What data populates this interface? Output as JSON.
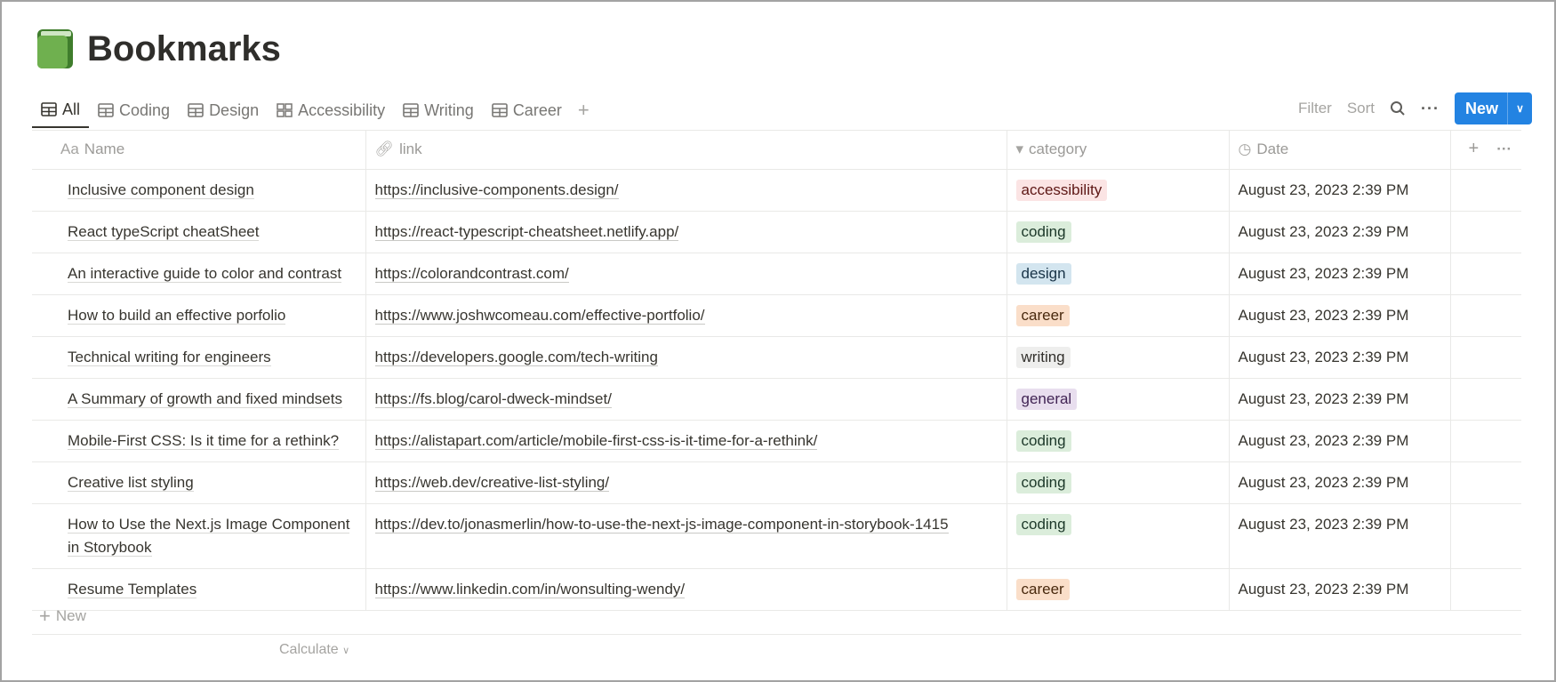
{
  "page": {
    "title": "Bookmarks",
    "icon": "green-book-icon"
  },
  "tabs": [
    {
      "label": "All",
      "icon": "table-icon",
      "active": true
    },
    {
      "label": "Coding",
      "icon": "table-icon"
    },
    {
      "label": "Design",
      "icon": "table-icon"
    },
    {
      "label": "Accessibility",
      "icon": "gallery-icon"
    },
    {
      "label": "Writing",
      "icon": "table-icon"
    },
    {
      "label": "Career",
      "icon": "table-icon"
    }
  ],
  "toolbar": {
    "filter": "Filter",
    "sort": "Sort",
    "new": "New"
  },
  "columns": [
    {
      "label": "Name",
      "icon": "Aa"
    },
    {
      "label": "link",
      "icon": "link-icon"
    },
    {
      "label": "category",
      "icon": "select-icon"
    },
    {
      "label": "Date",
      "icon": "clock-icon"
    }
  ],
  "tag_colors": {
    "accessibility": {
      "bg": "#fbe4e4",
      "fg": "#5d1715"
    },
    "coding": {
      "bg": "#dbeddb",
      "fg": "#1c3829"
    },
    "design": {
      "bg": "#d3e5ef",
      "fg": "#183347"
    },
    "career": {
      "bg": "#fadec9",
      "fg": "#49290e"
    },
    "writing": {
      "bg": "#eeeeed",
      "fg": "#32302c"
    },
    "general": {
      "bg": "#e8deee",
      "fg": "#412454"
    }
  },
  "rows": [
    {
      "name": "Inclusive component design",
      "link": "https://inclusive-components.design/",
      "category": "accessibility",
      "date": "August 23, 2023 2:39 PM"
    },
    {
      "name": "React typeScript cheatSheet",
      "link": "https://react-typescript-cheatsheet.netlify.app/",
      "category": "coding",
      "date": "August 23, 2023 2:39 PM"
    },
    {
      "name": "An interactive guide to color and contrast",
      "link": "https://colorandcontrast.com/",
      "category": "design",
      "date": "August 23, 2023 2:39 PM"
    },
    {
      "name": "How to build an effective porfolio",
      "link": "https://www.joshwcomeau.com/effective-portfolio/",
      "category": "career",
      "date": "August 23, 2023 2:39 PM"
    },
    {
      "name": "Technical writing for engineers",
      "link": "https://developers.google.com/tech-writing",
      "category": "writing",
      "date": "August 23, 2023 2:39 PM"
    },
    {
      "name": "A Summary of growth and fixed mindsets",
      "link": "https://fs.blog/carol-dweck-mindset/",
      "category": "general",
      "date": "August 23, 2023 2:39 PM"
    },
    {
      "name": "Mobile-First CSS: Is it time for a rethink?",
      "link": "https://alistapart.com/article/mobile-first-css-is-it-time-for-a-rethink/",
      "category": "coding",
      "date": "August 23, 2023 2:39 PM"
    },
    {
      "name": "Creative list styling",
      "link": "https://web.dev/creative-list-styling/",
      "category": "coding",
      "date": "August 23, 2023 2:39 PM"
    },
    {
      "name": "How to Use the Next.js Image Component in Storybook",
      "link": "https://dev.to/jonasmerlin/how-to-use-the-next-js-image-component-in-storybook-1415",
      "category": "coding",
      "date": "August 23, 2023 2:39 PM"
    },
    {
      "name": "Resume Templates",
      "link": "https://www.linkedin.com/in/wonsulting-wendy/",
      "category": "career",
      "date": "August 23, 2023 2:39 PM"
    }
  ],
  "footer": {
    "new_row": "New",
    "calculate": "Calculate"
  }
}
